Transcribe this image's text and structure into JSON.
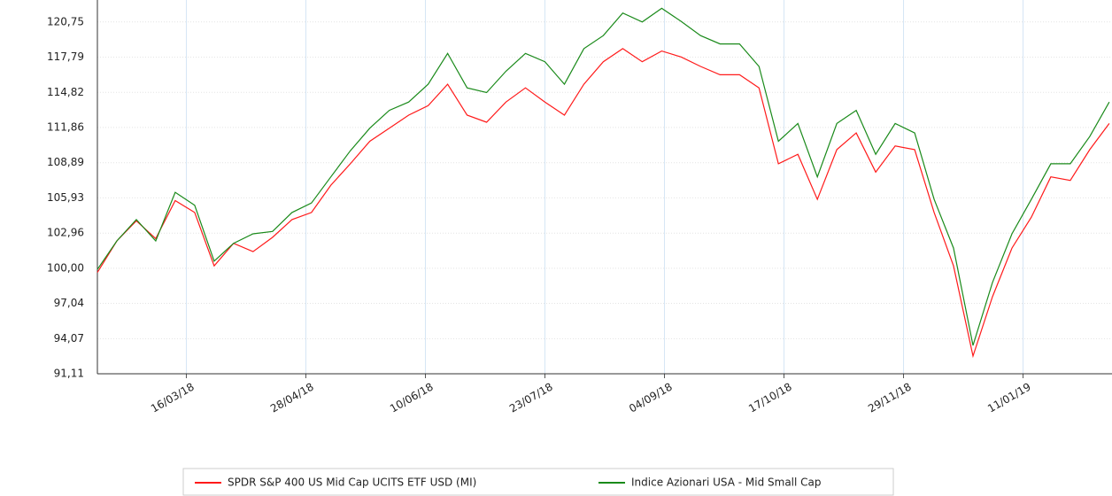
{
  "chart_data": {
    "type": "line",
    "x": [
      "2018-02-12",
      "2018-02-19",
      "2018-02-26",
      "2018-03-05",
      "2018-03-12",
      "2018-03-19",
      "2018-03-26",
      "2018-04-02",
      "2018-04-09",
      "2018-04-16",
      "2018-04-23",
      "2018-04-30",
      "2018-05-07",
      "2018-05-14",
      "2018-05-21",
      "2018-05-28",
      "2018-06-04",
      "2018-06-11",
      "2018-06-18",
      "2018-06-25",
      "2018-07-02",
      "2018-07-09",
      "2018-07-16",
      "2018-07-23",
      "2018-07-30",
      "2018-08-06",
      "2018-08-13",
      "2018-08-20",
      "2018-08-27",
      "2018-09-03",
      "2018-09-10",
      "2018-09-17",
      "2018-09-24",
      "2018-10-01",
      "2018-10-08",
      "2018-10-15",
      "2018-10-22",
      "2018-10-29",
      "2018-11-05",
      "2018-11-12",
      "2018-11-19",
      "2018-11-26",
      "2018-12-03",
      "2018-12-10",
      "2018-12-17",
      "2018-12-24",
      "2018-12-31",
      "2019-01-07",
      "2019-01-14",
      "2019-01-21",
      "2019-01-28",
      "2019-02-04",
      "2019-02-11"
    ],
    "series": [
      {
        "name": "SPDR S&P 400 US Mid Cap UCITS ETF USD (MI)",
        "color": "#ff1a1a",
        "values": [
          99.65,
          102.3,
          104.0,
          102.5,
          105.7,
          104.7,
          100.2,
          102.1,
          101.4,
          102.6,
          104.1,
          104.7,
          107.0,
          108.8,
          110.7,
          111.8,
          112.9,
          113.7,
          115.5,
          112.9,
          112.3,
          114.0,
          115.2,
          114.0,
          112.9,
          115.5,
          117.4,
          118.5,
          117.4,
          118.3,
          117.8,
          117.0,
          116.3,
          116.3,
          115.2,
          108.8,
          109.6,
          105.8,
          110.0,
          111.4,
          108.1,
          110.3,
          110.0,
          104.7,
          100.2,
          92.6,
          97.6,
          101.7,
          104.3,
          107.7,
          107.4,
          110.0,
          112.2
        ]
      },
      {
        "name": "Indice Azionari USA - Mid Small Cap",
        "color": "#1a8a1a",
        "values": [
          99.9,
          102.3,
          104.1,
          102.3,
          106.4,
          105.3,
          100.6,
          102.1,
          102.9,
          103.1,
          104.7,
          105.5,
          107.7,
          109.9,
          111.8,
          113.3,
          114.0,
          115.5,
          118.1,
          115.2,
          114.8,
          116.6,
          118.1,
          117.4,
          115.5,
          118.5,
          119.6,
          121.5,
          120.75,
          121.9,
          120.8,
          119.6,
          118.9,
          118.9,
          117.0,
          110.7,
          112.2,
          107.7,
          112.2,
          113.3,
          109.6,
          112.2,
          111.4,
          105.8,
          101.7,
          93.5,
          98.8,
          102.9,
          105.8,
          108.8,
          108.8,
          111.1,
          114.0
        ]
      }
    ],
    "xlim": [
      "2018-02-12",
      "2019-02-12"
    ],
    "xticks": [
      {
        "value": "2018-03-16",
        "label": "16/03/18"
      },
      {
        "value": "2018-04-28",
        "label": "28/04/18"
      },
      {
        "value": "2018-06-10",
        "label": "10/06/18"
      },
      {
        "value": "2018-07-23",
        "label": "23/07/18"
      },
      {
        "value": "2018-09-04",
        "label": "04/09/18"
      },
      {
        "value": "2018-10-17",
        "label": "17/10/18"
      },
      {
        "value": "2018-11-29",
        "label": "29/11/18"
      },
      {
        "value": "2019-01-11",
        "label": "11/01/19"
      }
    ],
    "ylim": [
      91.11,
      122.6
    ],
    "yticks": [
      {
        "value": 91.11,
        "label": "91,11"
      },
      {
        "value": 94.07,
        "label": "94,07"
      },
      {
        "value": 97.04,
        "label": "97,04"
      },
      {
        "value": 100,
        "label": "100,00"
      },
      {
        "value": 102.96,
        "label": "102,96"
      },
      {
        "value": 105.93,
        "label": "105,93"
      },
      {
        "value": 108.89,
        "label": "108,89"
      },
      {
        "value": 111.86,
        "label": "111,86"
      },
      {
        "value": 114.82,
        "label": "114,82"
      },
      {
        "value": 117.79,
        "label": "117,79"
      },
      {
        "value": 120.75,
        "label": "120,75"
      }
    ],
    "grid": true
  }
}
